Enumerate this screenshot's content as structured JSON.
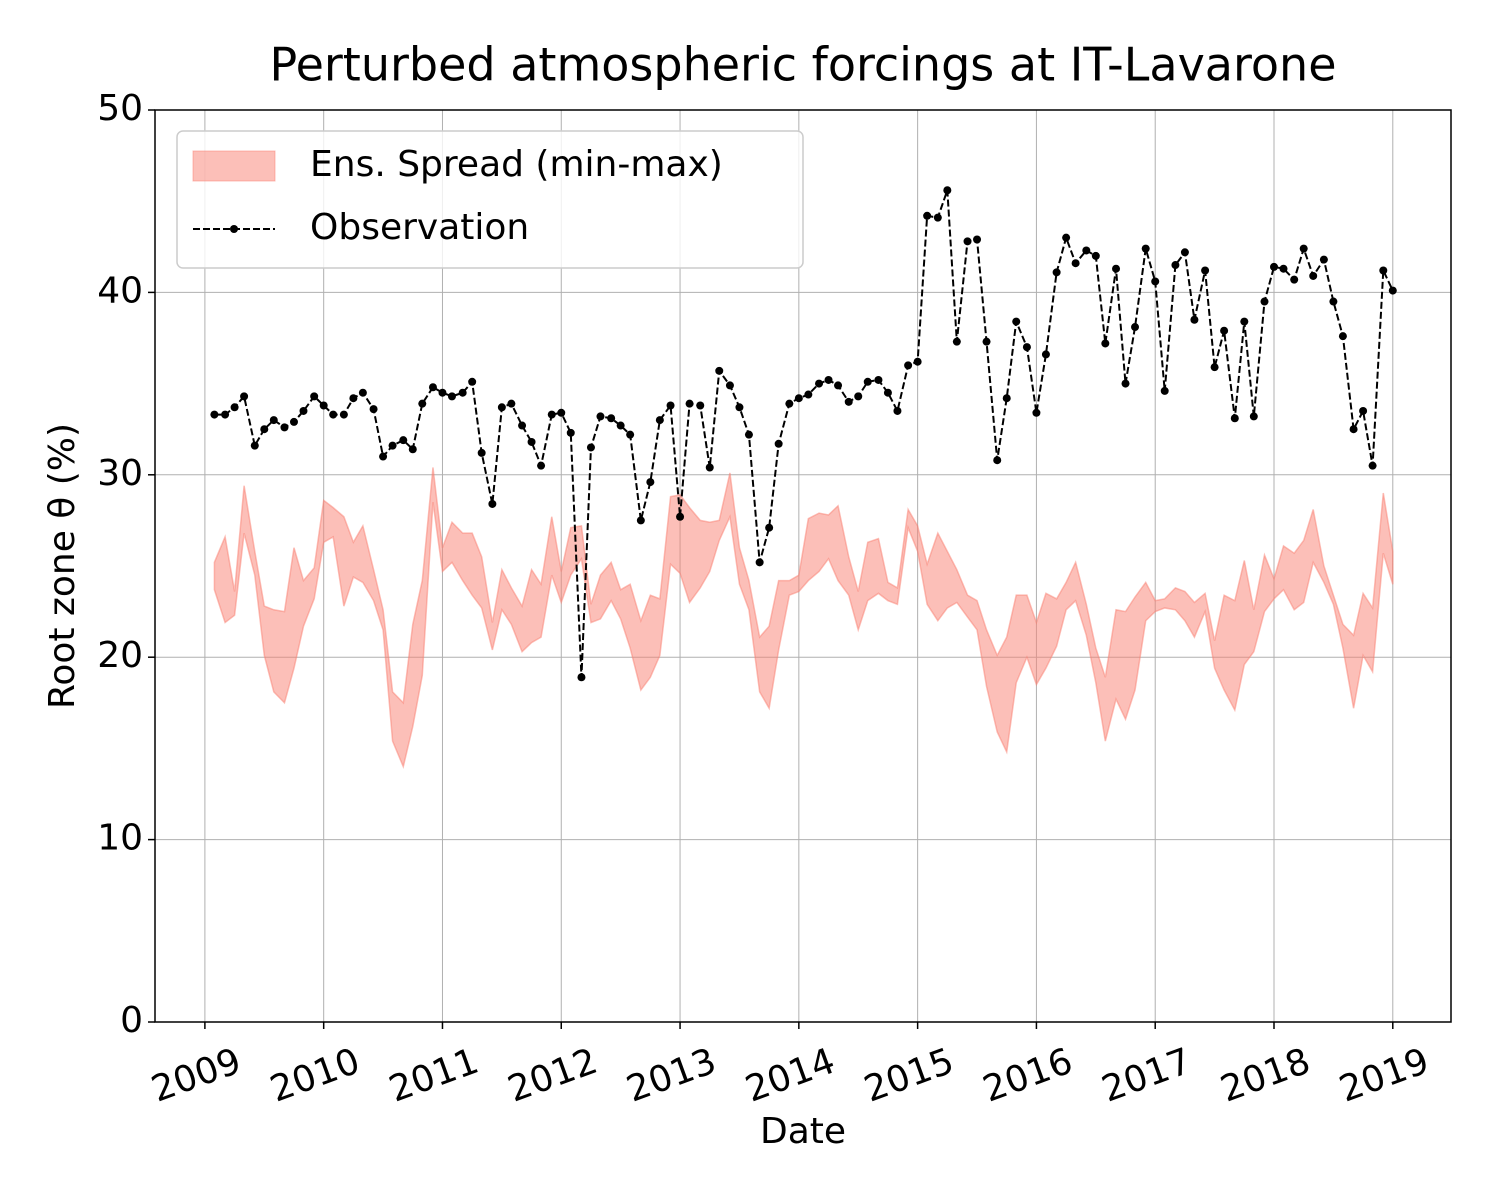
{
  "chart_data": {
    "type": "line",
    "title": "Perturbed atmospheric forcings at IT-Lavarone",
    "x_label": "Date",
    "y_label": "Root zone θ  (%)",
    "xlim": [
      2008.58,
      2019.49
    ],
    "xticks": [
      2009,
      2010,
      2011,
      2012,
      2013,
      2014,
      2015,
      2016,
      2017,
      2018,
      2019
    ],
    "ylim": [
      0,
      50
    ],
    "yticks": [
      0,
      10,
      20,
      30,
      40,
      50
    ],
    "grid": true,
    "legend": "upper left",
    "x": [
      2009.08,
      2009.17,
      2009.25,
      2009.33,
      2009.42,
      2009.5,
      2009.58,
      2009.67,
      2009.75,
      2009.83,
      2009.92,
      2010,
      2010.08,
      2010.17,
      2010.25,
      2010.33,
      2010.42,
      2010.5,
      2010.58,
      2010.67,
      2010.75,
      2010.83,
      2010.92,
      2011,
      2011.08,
      2011.17,
      2011.25,
      2011.33,
      2011.42,
      2011.5,
      2011.58,
      2011.67,
      2011.75,
      2011.83,
      2011.92,
      2012,
      2012.08,
      2012.17,
      2012.25,
      2012.33,
      2012.42,
      2012.5,
      2012.58,
      2012.67,
      2012.75,
      2012.83,
      2012.92,
      2013,
      2013.08,
      2013.17,
      2013.25,
      2013.33,
      2013.42,
      2013.5,
      2013.58,
      2013.67,
      2013.75,
      2013.83,
      2013.92,
      2014,
      2014.08,
      2014.17,
      2014.25,
      2014.33,
      2014.42,
      2014.5,
      2014.58,
      2014.67,
      2014.75,
      2014.83,
      2014.92,
      2015,
      2015.08,
      2015.17,
      2015.25,
      2015.33,
      2015.42,
      2015.5,
      2015.58,
      2015.67,
      2015.75,
      2015.83,
      2015.92,
      2016,
      2016.08,
      2016.17,
      2016.25,
      2016.33,
      2016.42,
      2016.5,
      2016.58,
      2016.67,
      2016.75,
      2016.83,
      2016.92,
      2017,
      2017.08,
      2017.17,
      2017.25,
      2017.33,
      2017.42,
      2017.5,
      2017.58,
      2017.67,
      2017.75,
      2017.83,
      2017.92,
      2018,
      2018.08,
      2018.17,
      2018.25,
      2018.33,
      2018.42,
      2018.5,
      2018.58,
      2018.67,
      2018.75,
      2018.83,
      2018.92,
      2019
    ],
    "series": [
      {
        "name": "Ens. Spread (min-max)",
        "type": "band",
        "color": "#fa8072",
        "upper": [
          25.2,
          26.6,
          23.6,
          29.4,
          25.8,
          22.8,
          22.6,
          22.5,
          26.0,
          24.2,
          24.9,
          28.6,
          28.2,
          27.7,
          26.3,
          27.2,
          24.8,
          22.6,
          18.1,
          17.5,
          21.8,
          24.2,
          30.4,
          26.0,
          27.4,
          26.8,
          26.8,
          25.5,
          21.9,
          24.8,
          23.8,
          22.8,
          24.8,
          24.0,
          27.7,
          24.7,
          27.1,
          27.2,
          22.9,
          24.5,
          25.2,
          23.7,
          24.0,
          22.0,
          23.4,
          23.2,
          28.8,
          28.9,
          28.2,
          27.5,
          27.4,
          27.5,
          30.1,
          26.0,
          24.2,
          21.1,
          21.7,
          24.2,
          24.2,
          24.5,
          27.6,
          27.9,
          27.8,
          28.3,
          25.5,
          23.6,
          26.3,
          26.5,
          24.1,
          23.8,
          28.1,
          27.2,
          25.1,
          26.8,
          25.8,
          24.8,
          23.4,
          23.1,
          21.5,
          20.1,
          21.1,
          23.4,
          23.4,
          21.9,
          23.5,
          23.2,
          24.1,
          25.2,
          22.9,
          20.5,
          18.9,
          22.6,
          22.5,
          23.3,
          24.1,
          23.1,
          23.2,
          23.8,
          23.6,
          23.0,
          23.5,
          20.9,
          23.4,
          23.1,
          25.3,
          22.6,
          25.6,
          24.3,
          26.1,
          25.7,
          26.4,
          28.1,
          25.0,
          23.4,
          21.8,
          21.2,
          23.5,
          22.7,
          29.0,
          25.8
        ],
        "lower": [
          23.7,
          21.9,
          22.3,
          26.8,
          24.5,
          20.1,
          18.1,
          17.5,
          19.4,
          21.7,
          23.2,
          26.3,
          26.6,
          22.8,
          24.4,
          24.1,
          23.1,
          21.5,
          15.4,
          14.0,
          16.2,
          19.0,
          28.5,
          24.7,
          25.2,
          24.2,
          23.4,
          22.7,
          20.4,
          22.6,
          21.8,
          20.3,
          20.8,
          21.1,
          24.5,
          23.0,
          24.5,
          25.4,
          21.9,
          22.1,
          23.1,
          22.1,
          20.5,
          18.2,
          18.9,
          20.1,
          25.1,
          24.6,
          23.0,
          23.8,
          24.7,
          26.4,
          27.7,
          24.0,
          22.6,
          18.1,
          17.2,
          20.4,
          23.4,
          23.6,
          24.2,
          24.7,
          25.4,
          24.2,
          23.4,
          21.5,
          23.1,
          23.5,
          23.1,
          22.9,
          27.1,
          25.8,
          22.9,
          22.0,
          22.7,
          23.0,
          22.2,
          21.5,
          18.4,
          15.9,
          14.8,
          18.6,
          20.0,
          18.5,
          19.4,
          20.6,
          22.6,
          23.1,
          21.2,
          18.6,
          15.4,
          17.7,
          16.6,
          18.2,
          22.0,
          22.5,
          22.7,
          22.6,
          22.0,
          21.1,
          22.5,
          19.4,
          18.2,
          17.1,
          19.6,
          20.3,
          22.5,
          23.2,
          23.7,
          22.6,
          23.0,
          25.2,
          24.1,
          22.9,
          20.5,
          17.2,
          20.1,
          19.2,
          25.7,
          24.0
        ]
      },
      {
        "name": "Observation",
        "type": "line",
        "color": "#000000",
        "dashed": true,
        "marker": true,
        "values": [
          33.3,
          33.3,
          33.7,
          34.3,
          31.6,
          32.5,
          33.0,
          32.6,
          32.9,
          33.5,
          34.3,
          33.8,
          33.3,
          33.3,
          34.2,
          34.5,
          33.6,
          31.0,
          31.6,
          31.9,
          31.4,
          33.9,
          34.8,
          34.5,
          34.3,
          34.5,
          35.1,
          31.2,
          28.4,
          33.7,
          33.9,
          32.7,
          31.8,
          30.5,
          33.3,
          33.4,
          32.3,
          18.9,
          31.5,
          33.2,
          33.1,
          32.7,
          32.2,
          27.5,
          29.6,
          33.0,
          33.8,
          27.7,
          33.9,
          33.8,
          30.4,
          35.7,
          34.9,
          33.7,
          32.2,
          25.2,
          27.1,
          31.7,
          33.9,
          34.2,
          34.4,
          35.0,
          35.2,
          34.9,
          34.0,
          34.3,
          35.1,
          35.2,
          34.5,
          33.5,
          36.0,
          36.2,
          44.2,
          44.1,
          45.6,
          37.3,
          42.8,
          42.9,
          37.3,
          30.8,
          34.2,
          38.4,
          37.0,
          33.4,
          36.6,
          41.1,
          43.0,
          41.6,
          42.3,
          42.0,
          37.2,
          41.3,
          35.0,
          38.1,
          42.4,
          40.6,
          34.6,
          41.5,
          42.2,
          38.5,
          41.2,
          35.9,
          37.9,
          33.1,
          38.4,
          33.2,
          39.5,
          41.4,
          41.3,
          40.7,
          42.4,
          40.9,
          41.8,
          39.5,
          37.6,
          32.5,
          33.5,
          30.5,
          41.2,
          40.1
        ]
      }
    ]
  }
}
